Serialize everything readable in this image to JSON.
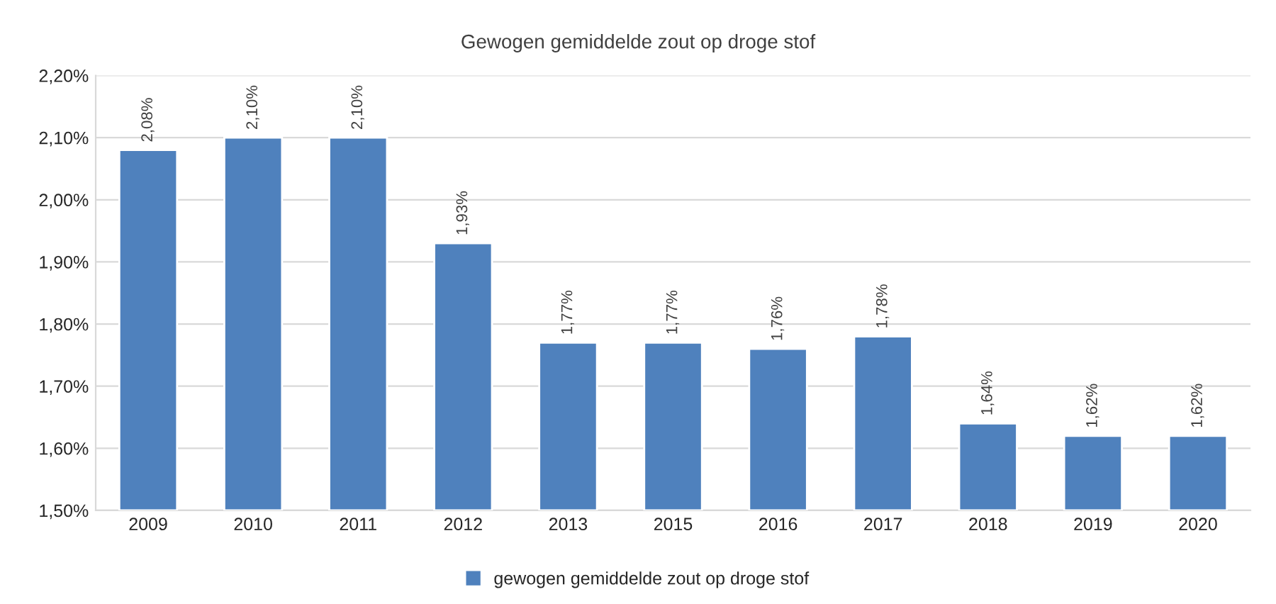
{
  "chart_data": {
    "type": "bar",
    "title": "Gewogen gemiddelde zout op droge stof",
    "categories": [
      "2009",
      "2010",
      "2011",
      "2012",
      "2013",
      "2015",
      "2016",
      "2017",
      "2018",
      "2019",
      "2020"
    ],
    "series": [
      {
        "name": "gewogen gemiddelde zout op droge stof",
        "color": "#4f81bd",
        "values": [
          2.08,
          2.1,
          2.1,
          1.93,
          1.77,
          1.77,
          1.76,
          1.78,
          1.64,
          1.62,
          1.62
        ],
        "value_labels": [
          "2,08%",
          "2,10%",
          "2,10%",
          "1,93%",
          "1,77%",
          "1,77%",
          "1,76%",
          "1,78%",
          "1,64%",
          "1,62%",
          "1,62%"
        ]
      }
    ],
    "ylim": [
      1.5,
      2.2
    ],
    "yticks": [
      {
        "value": 1.5,
        "label": "1,50%"
      },
      {
        "value": 1.6,
        "label": "1,60%"
      },
      {
        "value": 1.7,
        "label": "1,70%"
      },
      {
        "value": 1.8,
        "label": "1,80%"
      },
      {
        "value": 1.9,
        "label": "1,90%"
      },
      {
        "value": 2.0,
        "label": "2,00%"
      },
      {
        "value": 2.1,
        "label": "2,10%"
      },
      {
        "value": 2.2,
        "label": "2,20%"
      }
    ],
    "grid": "y",
    "legend": "bottom"
  }
}
